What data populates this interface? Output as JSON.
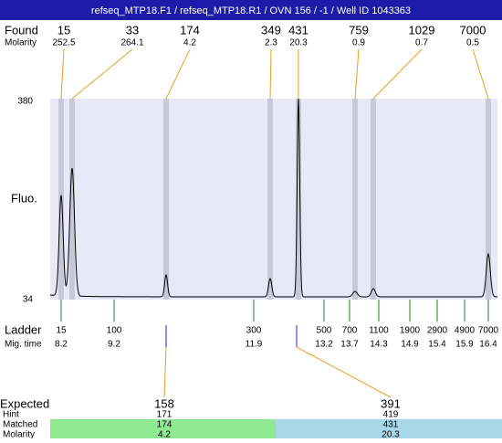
{
  "header": {
    "title": "refseq_MTP18.F1 / refseq_MTP18.R1 / OVN 156 / -1 / Well ID 1043363"
  },
  "found": {
    "label": "Found",
    "molarity_label": "Molarity",
    "peaks": [
      {
        "size": 15,
        "molarity": 252.5
      },
      {
        "size": 33,
        "molarity": 264.1
      },
      {
        "size": 174,
        "molarity": 4.2
      },
      {
        "size": 349,
        "molarity": 2.3
      },
      {
        "size": 431,
        "molarity": 20.3
      },
      {
        "size": 759,
        "molarity": 0.9
      },
      {
        "size": 1029,
        "molarity": 0.7
      },
      {
        "size": 7000,
        "molarity": 0.5
      }
    ]
  },
  "axis": {
    "label": "Fluo.",
    "max": 380,
    "min": 34
  },
  "ladder": {
    "label": "Ladder",
    "time_label": "Mig. time",
    "steps": [
      {
        "size": 15,
        "time": 8.2
      },
      {
        "size": 100,
        "time": 9.2
      },
      {
        "size": 300,
        "time": 11.9
      },
      {
        "size": 500,
        "time": 13.2
      },
      {
        "size": 700,
        "time": 13.7
      },
      {
        "size": 1100,
        "time": 14.3
      },
      {
        "size": 1900,
        "time": 14.9
      },
      {
        "size": 2900,
        "time": 15.4
      },
      {
        "size": 4900,
        "time": 15.9
      },
      {
        "size": 7000,
        "time": 16.4
      }
    ]
  },
  "expected": {
    "label": "Expected",
    "hint_label": "Hint",
    "matched_label": "Matched",
    "molarity_label": "Molarity",
    "peaks": [
      {
        "expected": 158,
        "hint": 171,
        "matched": 174,
        "molarity": 4.2
      },
      {
        "expected": 391,
        "hint": 419,
        "matched": 431,
        "molarity": 20.3
      }
    ]
  }
}
